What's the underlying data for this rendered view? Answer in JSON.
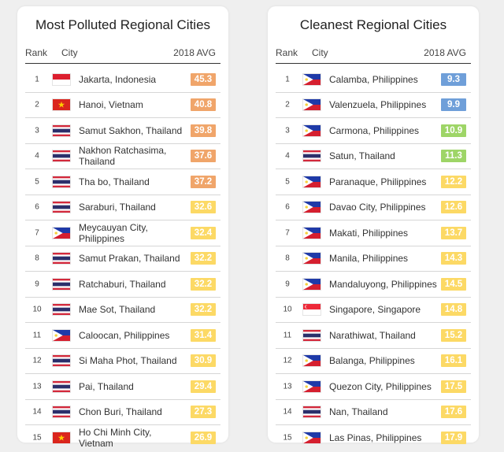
{
  "colors": {
    "orange": "#f0a56a",
    "yellow": "#fcd965",
    "green": "#9ed567",
    "blue": "#6f9fd9"
  },
  "polluted": {
    "title": "Most Polluted Regional Cities",
    "columns": {
      "rank": "Rank",
      "city": "City",
      "avg": "2018 AVG"
    },
    "rows": [
      {
        "rank": "1",
        "flag": "indonesia-flag",
        "city": "Jakarta, Indonesia",
        "avg": "45.3",
        "level": "orange"
      },
      {
        "rank": "2",
        "flag": "vietnam-flag",
        "city": "Hanoi, Vietnam",
        "avg": "40.8",
        "level": "orange"
      },
      {
        "rank": "3",
        "flag": "thailand-flag",
        "city": "Samut Sakhon, Thailand",
        "avg": "39.8",
        "level": "orange"
      },
      {
        "rank": "4",
        "flag": "thailand-flag",
        "city": "Nakhon Ratchasima, Thailand",
        "avg": "37.6",
        "level": "orange"
      },
      {
        "rank": "5",
        "flag": "thailand-flag",
        "city": "Tha bo, Thailand",
        "avg": "37.2",
        "level": "orange"
      },
      {
        "rank": "6",
        "flag": "thailand-flag",
        "city": "Saraburi, Thailand",
        "avg": "32.6",
        "level": "yellow"
      },
      {
        "rank": "7",
        "flag": "philippines-flag",
        "city": "Meycauyan City, Philippines",
        "avg": "32.4",
        "level": "yellow"
      },
      {
        "rank": "8",
        "flag": "thailand-flag",
        "city": "Samut Prakan, Thailand",
        "avg": "32.2",
        "level": "yellow"
      },
      {
        "rank": "9",
        "flag": "thailand-flag",
        "city": "Ratchaburi, Thailand",
        "avg": "32.2",
        "level": "yellow"
      },
      {
        "rank": "10",
        "flag": "thailand-flag",
        "city": "Mae Sot, Thailand",
        "avg": "32.2",
        "level": "yellow"
      },
      {
        "rank": "11",
        "flag": "philippines-flag",
        "city": "Caloocan, Philippines",
        "avg": "31.4",
        "level": "yellow"
      },
      {
        "rank": "12",
        "flag": "thailand-flag",
        "city": "Si Maha Phot, Thailand",
        "avg": "30.9",
        "level": "yellow"
      },
      {
        "rank": "13",
        "flag": "thailand-flag",
        "city": "Pai, Thailand",
        "avg": "29.4",
        "level": "yellow"
      },
      {
        "rank": "14",
        "flag": "thailand-flag",
        "city": "Chon Buri, Thailand",
        "avg": "27.3",
        "level": "yellow"
      },
      {
        "rank": "15",
        "flag": "vietnam-flag",
        "city": "Ho Chi Minh City, Vietnam",
        "avg": "26.9",
        "level": "yellow"
      }
    ]
  },
  "cleanest": {
    "title": "Cleanest Regional Cities",
    "columns": {
      "rank": "Rank",
      "city": "City",
      "avg": "2018 AVG"
    },
    "rows": [
      {
        "rank": "1",
        "flag": "philippines-flag",
        "city": "Calamba, Philippines",
        "avg": "9.3",
        "level": "blue"
      },
      {
        "rank": "2",
        "flag": "philippines-flag",
        "city": "Valenzuela, Philippines",
        "avg": "9.9",
        "level": "blue"
      },
      {
        "rank": "3",
        "flag": "philippines-flag",
        "city": "Carmona, Philippines",
        "avg": "10.9",
        "level": "green"
      },
      {
        "rank": "4",
        "flag": "thailand-flag",
        "city": "Satun, Thailand",
        "avg": "11.3",
        "level": "green"
      },
      {
        "rank": "5",
        "flag": "philippines-flag",
        "city": "Paranaque, Philippines",
        "avg": "12.2",
        "level": "yellow"
      },
      {
        "rank": "6",
        "flag": "philippines-flag",
        "city": "Davao City, Philippines",
        "avg": "12.6",
        "level": "yellow"
      },
      {
        "rank": "7",
        "flag": "philippines-flag",
        "city": "Makati, Philippines",
        "avg": "13.7",
        "level": "yellow"
      },
      {
        "rank": "8",
        "flag": "philippines-flag",
        "city": "Manila, Philippines",
        "avg": "14.3",
        "level": "yellow"
      },
      {
        "rank": "9",
        "flag": "philippines-flag",
        "city": "Mandaluyong, Philippines",
        "avg": "14.5",
        "level": "yellow"
      },
      {
        "rank": "10",
        "flag": "singapore-flag",
        "city": "Singapore, Singapore",
        "avg": "14.8",
        "level": "yellow"
      },
      {
        "rank": "11",
        "flag": "thailand-flag",
        "city": "Narathiwat, Thailand",
        "avg": "15.2",
        "level": "yellow"
      },
      {
        "rank": "12",
        "flag": "philippines-flag",
        "city": "Balanga, Philippines",
        "avg": "16.1",
        "level": "yellow"
      },
      {
        "rank": "13",
        "flag": "philippines-flag",
        "city": "Quezon City, Philippines",
        "avg": "17.5",
        "level": "yellow"
      },
      {
        "rank": "14",
        "flag": "thailand-flag",
        "city": "Nan, Thailand",
        "avg": "17.6",
        "level": "yellow"
      },
      {
        "rank": "15",
        "flag": "philippines-flag",
        "city": "Las Pinas, Philippines",
        "avg": "17.9",
        "level": "yellow"
      }
    ]
  }
}
